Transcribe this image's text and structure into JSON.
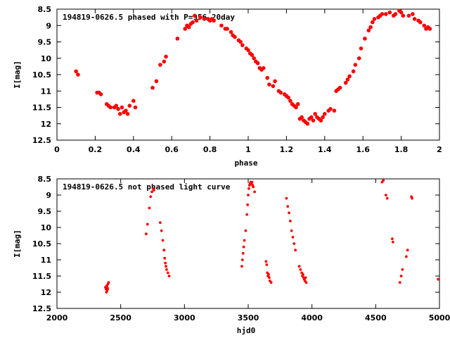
{
  "chart_data": [
    {
      "type": "scatter",
      "title": "194819-0626.5 phased with P=956.20day",
      "xlabel": "phase",
      "ylabel": "I[mag]",
      "xlim": [
        0,
        2
      ],
      "ylim": [
        12.5,
        8.5
      ],
      "y_inverted": true,
      "grid": false,
      "marker_color": "#ff0000",
      "xticks": [
        "0",
        "0.2",
        "0.4",
        "0.6",
        "0.8",
        "1",
        "1.2",
        "1.4",
        "1.6",
        "1.8",
        "2"
      ],
      "yticks": [
        "8.5",
        "9",
        "9.5",
        "10",
        "10.5",
        "11",
        "11.5",
        "12",
        "12.5"
      ],
      "points": [
        [
          0.1,
          10.4
        ],
        [
          0.11,
          10.5
        ],
        [
          0.21,
          11.05
        ],
        [
          0.22,
          11.05
        ],
        [
          0.23,
          11.1
        ],
        [
          0.26,
          11.4
        ],
        [
          0.27,
          11.45
        ],
        [
          0.28,
          11.5
        ],
        [
          0.3,
          11.5
        ],
        [
          0.31,
          11.45
        ],
        [
          0.32,
          11.55
        ],
        [
          0.33,
          11.7
        ],
        [
          0.34,
          11.5
        ],
        [
          0.35,
          11.65
        ],
        [
          0.36,
          11.6
        ],
        [
          0.37,
          11.7
        ],
        [
          0.38,
          11.45
        ],
        [
          0.4,
          11.3
        ],
        [
          0.41,
          11.5
        ],
        [
          0.5,
          10.9
        ],
        [
          0.52,
          10.7
        ],
        [
          0.54,
          10.2
        ],
        [
          0.56,
          10.1
        ],
        [
          0.57,
          9.95
        ],
        [
          0.63,
          9.4
        ],
        [
          0.67,
          9.1
        ],
        [
          0.68,
          9.0
        ],
        [
          0.69,
          9.05
        ],
        [
          0.7,
          8.95
        ],
        [
          0.71,
          8.9
        ],
        [
          0.72,
          8.7
        ],
        [
          0.73,
          8.85
        ],
        [
          0.75,
          8.75
        ],
        [
          0.77,
          8.8
        ],
        [
          0.79,
          8.8
        ],
        [
          0.8,
          8.85
        ],
        [
          0.81,
          8.8
        ],
        [
          0.82,
          8.85
        ],
        [
          0.86,
          9.0
        ],
        [
          0.88,
          9.1
        ],
        [
          0.89,
          9.1
        ],
        [
          0.91,
          9.2
        ],
        [
          0.92,
          9.3
        ],
        [
          0.93,
          9.35
        ],
        [
          0.95,
          9.45
        ],
        [
          0.96,
          9.5
        ],
        [
          0.97,
          9.6
        ],
        [
          0.99,
          9.7
        ],
        [
          1.0,
          9.75
        ],
        [
          1.01,
          9.85
        ],
        [
          1.02,
          9.9
        ],
        [
          1.03,
          10.0
        ],
        [
          1.04,
          10.1
        ],
        [
          1.05,
          10.15
        ],
        [
          1.06,
          10.3
        ],
        [
          1.07,
          10.35
        ],
        [
          1.08,
          10.3
        ],
        [
          1.1,
          10.6
        ],
        [
          1.11,
          10.8
        ],
        [
          1.13,
          10.85
        ],
        [
          1.14,
          10.7
        ],
        [
          1.16,
          11.0
        ],
        [
          1.17,
          11.05
        ],
        [
          1.19,
          11.1
        ],
        [
          1.2,
          11.15
        ],
        [
          1.21,
          11.2
        ],
        [
          1.22,
          11.3
        ],
        [
          1.23,
          11.4
        ],
        [
          1.24,
          11.45
        ],
        [
          1.25,
          11.5
        ],
        [
          1.26,
          11.4
        ],
        [
          1.27,
          11.85
        ],
        [
          1.28,
          11.8
        ],
        [
          1.29,
          11.9
        ],
        [
          1.3,
          11.95
        ],
        [
          1.31,
          12.0
        ],
        [
          1.32,
          11.85
        ],
        [
          1.33,
          11.8
        ],
        [
          1.34,
          11.9
        ],
        [
          1.35,
          11.7
        ],
        [
          1.36,
          11.8
        ],
        [
          1.37,
          11.85
        ],
        [
          1.38,
          11.9
        ],
        [
          1.39,
          11.8
        ],
        [
          1.4,
          11.7
        ],
        [
          1.42,
          11.6
        ],
        [
          1.43,
          11.55
        ],
        [
          1.45,
          11.6
        ],
        [
          1.46,
          11.0
        ],
        [
          1.47,
          10.95
        ],
        [
          1.48,
          10.9
        ],
        [
          1.51,
          10.75
        ],
        [
          1.52,
          10.65
        ],
        [
          1.53,
          10.55
        ],
        [
          1.55,
          10.4
        ],
        [
          1.56,
          10.2
        ],
        [
          1.58,
          10.0
        ],
        [
          1.59,
          9.7
        ],
        [
          1.61,
          9.4
        ],
        [
          1.63,
          9.15
        ],
        [
          1.64,
          9.05
        ],
        [
          1.65,
          8.9
        ],
        [
          1.66,
          8.8
        ],
        [
          1.68,
          8.75
        ],
        [
          1.69,
          8.7
        ],
        [
          1.7,
          8.65
        ],
        [
          1.72,
          8.65
        ],
        [
          1.74,
          8.6
        ],
        [
          1.76,
          8.7
        ],
        [
          1.77,
          8.65
        ],
        [
          1.79,
          8.55
        ],
        [
          1.8,
          8.6
        ],
        [
          1.81,
          8.7
        ],
        [
          1.84,
          8.7
        ],
        [
          1.86,
          8.65
        ],
        [
          1.87,
          8.8
        ],
        [
          1.89,
          8.85
        ],
        [
          1.9,
          8.9
        ],
        [
          1.92,
          9.0
        ],
        [
          1.93,
          9.1
        ],
        [
          1.94,
          9.05
        ],
        [
          1.95,
          9.1
        ]
      ]
    },
    {
      "type": "scatter",
      "title": "194819-0626.5 not phased light curve",
      "xlabel": "hjd0",
      "ylabel": "I[mag]",
      "xlim": [
        2000,
        5000
      ],
      "ylim": [
        12.5,
        8.5
      ],
      "y_inverted": true,
      "grid": false,
      "marker_color": "#ff0000",
      "xticks": [
        "2000",
        "2500",
        "3000",
        "3500",
        "4000",
        "4500",
        "5000"
      ],
      "yticks": [
        "8.5",
        "9",
        "9.5",
        "10",
        "10.5",
        "11",
        "11.5",
        "12",
        "12.5"
      ],
      "points": [
        [
          2380,
          11.85
        ],
        [
          2385,
          11.9
        ],
        [
          2388,
          12.0
        ],
        [
          2390,
          11.8
        ],
        [
          2393,
          11.95
        ],
        [
          2395,
          11.85
        ],
        [
          2398,
          11.9
        ],
        [
          2400,
          11.75
        ],
        [
          2405,
          11.7
        ],
        [
          2700,
          10.2
        ],
        [
          2710,
          9.9
        ],
        [
          2725,
          9.4
        ],
        [
          2735,
          9.05
        ],
        [
          2745,
          8.9
        ],
        [
          2755,
          8.8
        ],
        [
          2760,
          8.85
        ],
        [
          2810,
          9.85
        ],
        [
          2820,
          10.1
        ],
        [
          2830,
          10.4
        ],
        [
          2840,
          10.7
        ],
        [
          2845,
          10.95
        ],
        [
          2850,
          11.1
        ],
        [
          2855,
          11.2
        ],
        [
          2860,
          11.3
        ],
        [
          2870,
          11.4
        ],
        [
          2880,
          11.5
        ],
        [
          3450,
          11.2
        ],
        [
          3455,
          11.0
        ],
        [
          3460,
          10.8
        ],
        [
          3465,
          10.6
        ],
        [
          3470,
          10.4
        ],
        [
          3480,
          10.1
        ],
        [
          3490,
          9.6
        ],
        [
          3495,
          9.3
        ],
        [
          3500,
          9.0
        ],
        [
          3505,
          8.8
        ],
        [
          3510,
          8.7
        ],
        [
          3515,
          8.65
        ],
        [
          3520,
          8.6
        ],
        [
          3525,
          8.65
        ],
        [
          3530,
          8.6
        ],
        [
          3535,
          8.7
        ],
        [
          3540,
          8.75
        ],
        [
          3550,
          8.9
        ],
        [
          3640,
          11.05
        ],
        [
          3645,
          11.15
        ],
        [
          3650,
          11.4
        ],
        [
          3655,
          11.5
        ],
        [
          3660,
          11.45
        ],
        [
          3665,
          11.55
        ],
        [
          3670,
          11.65
        ],
        [
          3680,
          11.7
        ],
        [
          3800,
          9.1
        ],
        [
          3810,
          9.35
        ],
        [
          3820,
          9.55
        ],
        [
          3830,
          9.8
        ],
        [
          3840,
          10.1
        ],
        [
          3850,
          10.3
        ],
        [
          3860,
          10.5
        ],
        [
          3870,
          10.7
        ],
        [
          3900,
          11.2
        ],
        [
          3910,
          11.3
        ],
        [
          3920,
          11.4
        ],
        [
          3925,
          11.5
        ],
        [
          3930,
          11.45
        ],
        [
          3935,
          11.55
        ],
        [
          3940,
          11.6
        ],
        [
          3945,
          11.65
        ],
        [
          3950,
          11.55
        ],
        [
          3955,
          11.7
        ],
        [
          4550,
          8.6
        ],
        [
          4560,
          8.55
        ],
        [
          4580,
          9.0
        ],
        [
          4590,
          9.1
        ],
        [
          4630,
          10.35
        ],
        [
          4635,
          10.45
        ],
        [
          4690,
          11.7
        ],
        [
          4700,
          11.5
        ],
        [
          4710,
          11.3
        ],
        [
          4740,
          10.9
        ],
        [
          4750,
          10.7
        ],
        [
          4780,
          9.05
        ],
        [
          4785,
          9.1
        ],
        [
          4990,
          11.6
        ]
      ]
    }
  ]
}
